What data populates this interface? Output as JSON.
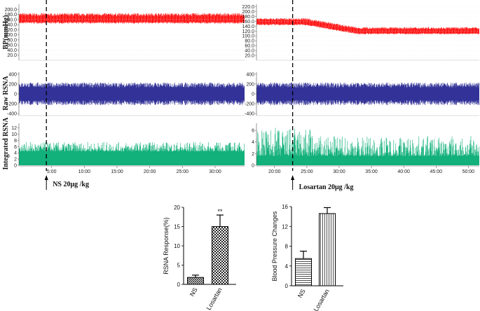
{
  "chart_data": [
    {
      "type": "line",
      "panel": "trace-left",
      "series": [
        {
          "name": "BP(mmHg)",
          "color": "#ff0000",
          "yticks": [
            "200.0",
            "180.0",
            "160.0",
            "140.0",
            "120.0",
            "100.0",
            "80.0",
            "60.0",
            "40.0",
            "20.0"
          ],
          "baseline_mmhg": 160,
          "band": 25
        },
        {
          "name": "Raw RSNA",
          "color": "#1a1a8c",
          "yticks": [
            "400",
            "200",
            "0",
            "-200",
            "-400"
          ],
          "amplitude": 230
        },
        {
          "name": "Integrated RSNA",
          "color": "#12b07a",
          "yticks": [
            "12",
            "10",
            "8",
            "6",
            "4",
            "2",
            "0"
          ],
          "baseline": 4.5,
          "peak": 7.5
        }
      ],
      "xticks": [
        "5:00",
        "10:00",
        "15:00",
        "20:00",
        "25:00",
        "30:00"
      ],
      "xlim_min": [
        0,
        34.5
      ],
      "marker_min": 4.2,
      "annotation": "NS 20μg /kg"
    },
    {
      "type": "line",
      "panel": "trace-right",
      "series": [
        {
          "name": "BP(mmHg)",
          "color": "#ff0000",
          "yticks": [
            "220.0",
            "200.0",
            "180.0",
            "160.0",
            "140.0",
            "120.0",
            "100.0",
            "80.0",
            "60.0",
            "40.0",
            "20.0"
          ],
          "baseline_mmhg": 155,
          "end_mmhg": 118,
          "band": 18
        },
        {
          "name": "Raw RSNA",
          "color": "#1a1a8c",
          "yticks": [
            "400",
            "200",
            "0",
            "-200",
            "-400"
          ],
          "amplitude": 230
        },
        {
          "name": "Integrated RSNA",
          "color": "#12b07a",
          "yticks": [
            "6",
            "4",
            "2",
            "0"
          ],
          "baseline": 1.6,
          "peak": 6.5
        }
      ],
      "xticks": [
        "20:00",
        "25:00",
        "30:00",
        "35:00",
        "40:00",
        "45:00",
        "50:00"
      ],
      "xlim_min": [
        17.2,
        51.7
      ],
      "marker_min": 22.8,
      "annotation": "Losartan 20μg /kg"
    },
    {
      "type": "bar",
      "panel": "rsna-bar",
      "categories": [
        "NS",
        "Losartan"
      ],
      "values": [
        1.8,
        15
      ],
      "errors": [
        0.6,
        3
      ],
      "ylabel": "RSNA Response(%)",
      "ylim": [
        0,
        20
      ],
      "yticks": [
        "0",
        "5",
        "10",
        "15",
        "20"
      ],
      "significance": "**",
      "patterns": [
        "crosshatch-fine",
        "checker"
      ]
    },
    {
      "type": "bar",
      "panel": "bp-bar",
      "categories": [
        "NS",
        "Losartan"
      ],
      "values": [
        5.5,
        14.6
      ],
      "errors": [
        1.5,
        1.2
      ],
      "ylabel": "Blood Pressure Changes",
      "ylim": [
        0,
        16
      ],
      "yticks": [
        "0",
        "4",
        "8",
        "12",
        "16"
      ],
      "patterns": [
        "horizontal-lines",
        "vertical-lines"
      ]
    }
  ]
}
